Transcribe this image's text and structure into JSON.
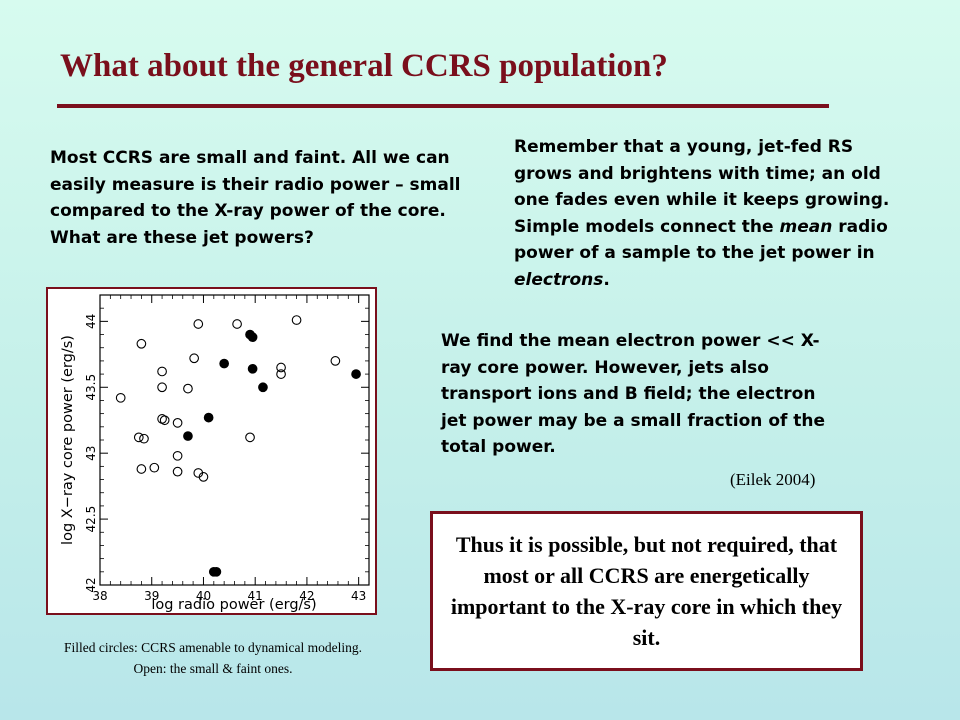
{
  "slide": {
    "title": "What about the general CCRS population?",
    "intro": "Most CCRS are small and faint. All we can easily measure is their radio power – small compared to the X-ray power of the core.  What are these jet powers?",
    "remember": {
      "before_mean": "Remember that a young, jet-fed RS grows and brightens with time;  an old one fades even while it keeps growing.  Simple models connect the ",
      "mean": "mean",
      "middle": " radio power of a sample to the jet power in ",
      "electrons": "electrons",
      "after": "."
    },
    "finding": "We find the mean electron power << X-ray core power. However, jets also transport ions and B field;  the electron jet power may be a small fraction of the total power.",
    "citation": "(Eilek 2004)",
    "caption": "Filled circles:   CCRS amenable to dynamical modeling. Open:  the small  &  faint ones.",
    "conclusion": "Thus it is possible, but not required, that most or all CCRS are energetically important to the X-ray core in which they sit."
  },
  "chart_data": {
    "type": "scatter",
    "xlabel": "log radio power (erg/s)",
    "ylabel": "log X−ray core power (erg/s)",
    "xlim": [
      38,
      43.2
    ],
    "ylim": [
      42,
      44.2
    ],
    "x_ticks": [
      "38",
      "39",
      "40",
      "41",
      "42",
      "43"
    ],
    "y_ticks": [
      "42",
      "42.5",
      "43",
      "43.5",
      "44"
    ],
    "series": [
      {
        "name": "Open",
        "marker": "open-circle",
        "points": [
          [
            38.4,
            43.42
          ],
          [
            38.8,
            43.83
          ],
          [
            38.75,
            43.12
          ],
          [
            38.85,
            43.11
          ],
          [
            38.8,
            42.88
          ],
          [
            39.05,
            42.89
          ],
          [
            39.2,
            43.62
          ],
          [
            39.2,
            43.5
          ],
          [
            39.2,
            43.26
          ],
          [
            39.25,
            43.25
          ],
          [
            39.5,
            43.23
          ],
          [
            39.5,
            42.98
          ],
          [
            39.5,
            42.86
          ],
          [
            39.7,
            43.49
          ],
          [
            39.82,
            43.72
          ],
          [
            39.9,
            43.98
          ],
          [
            39.9,
            42.85
          ],
          [
            40.0,
            42.82
          ],
          [
            40.65,
            43.98
          ],
          [
            40.9,
            43.12
          ],
          [
            41.5,
            43.6
          ],
          [
            41.5,
            43.65
          ],
          [
            41.8,
            44.01
          ],
          [
            42.55,
            43.7
          ]
        ]
      },
      {
        "name": "Filled",
        "marker": "filled-circle",
        "points": [
          [
            40.9,
            43.9
          ],
          [
            40.95,
            43.88
          ],
          [
            40.95,
            43.64
          ],
          [
            41.15,
            43.5
          ],
          [
            40.4,
            43.68
          ],
          [
            40.1,
            43.27
          ],
          [
            39.7,
            43.13
          ],
          [
            42.95,
            43.6
          ],
          [
            40.2,
            42.1
          ],
          [
            40.25,
            42.1
          ]
        ]
      }
    ]
  },
  "colors": {
    "accent": "#7a0f1c",
    "background_top": "#d7fbef",
    "background_bottom": "#b8e6ea"
  }
}
